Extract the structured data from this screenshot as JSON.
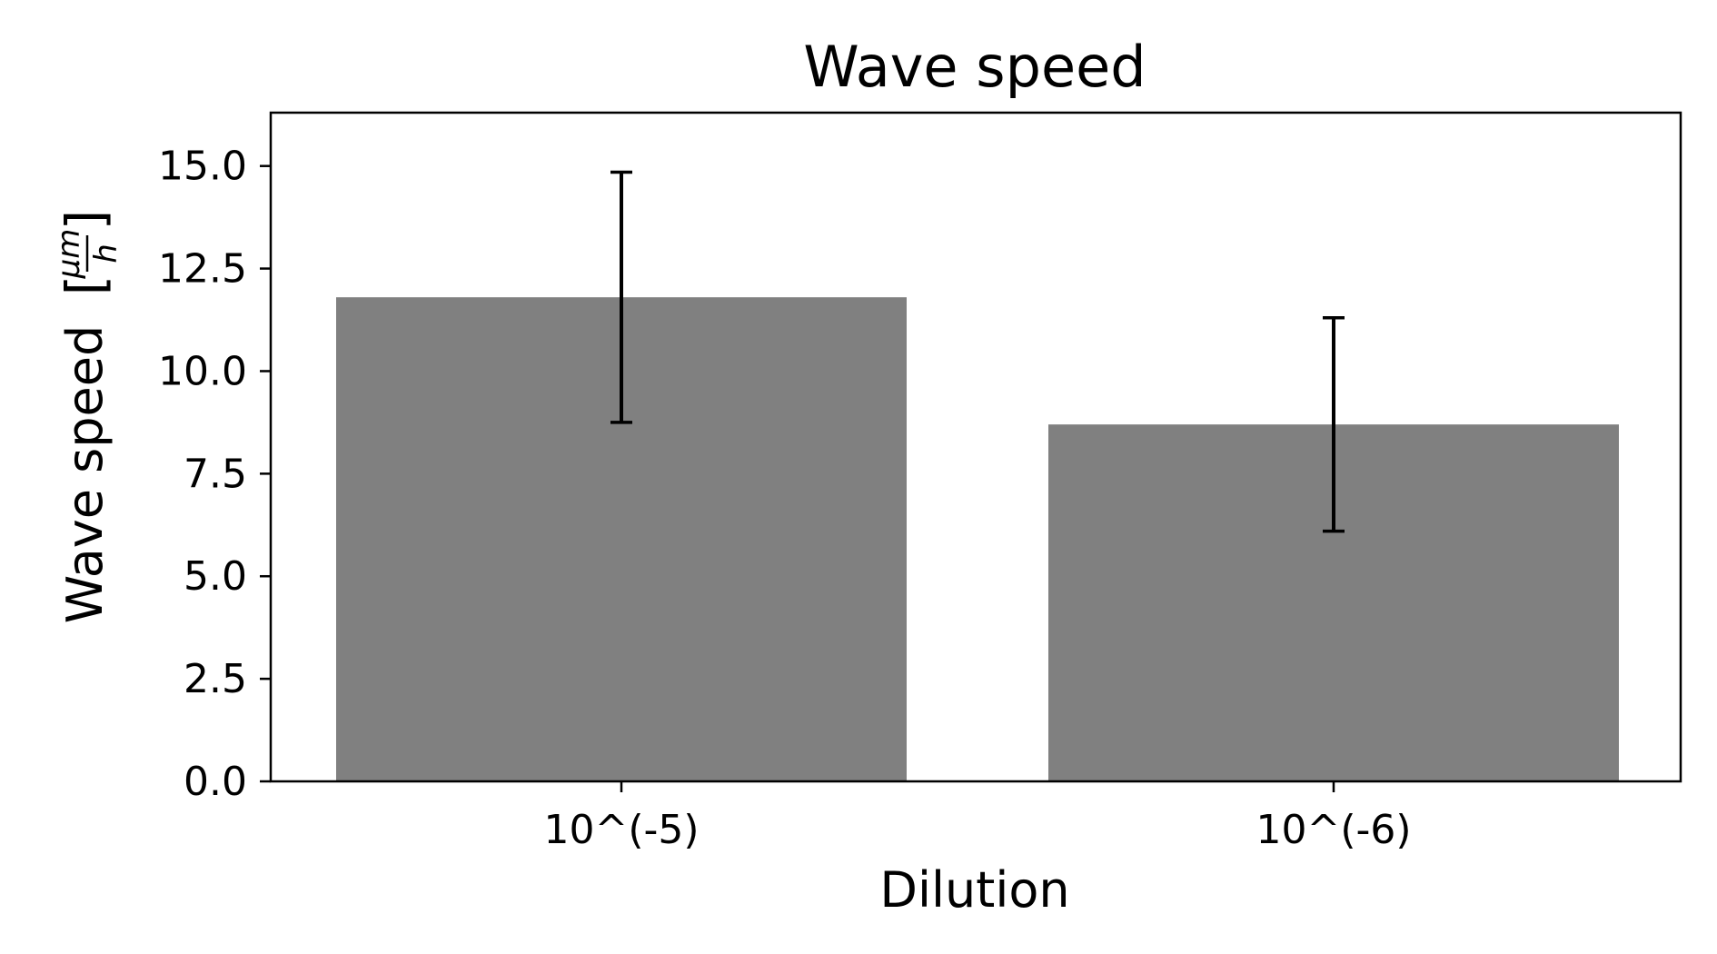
{
  "chart_data": {
    "type": "bar",
    "title": "Wave speed",
    "xlabel": "Dilution",
    "ylabel_main": "Wave speed",
    "ylabel_unit_numerator": "μm",
    "ylabel_unit_denominator": "h",
    "categories": [
      "10^(-5)",
      "10^(-6)"
    ],
    "values": [
      11.8,
      8.7
    ],
    "errors": [
      3.05,
      2.6
    ],
    "ylim": [
      0,
      16.3
    ],
    "yticks": [
      0.0,
      2.5,
      5.0,
      7.5,
      10.0,
      12.5,
      15.0
    ],
    "ytick_labels": [
      "0.0",
      "2.5",
      "5.0",
      "7.5",
      "10.0",
      "12.5",
      "15.0"
    ],
    "bar_color": "#808080",
    "error_color": "#000000",
    "grid": false,
    "legend": false
  }
}
